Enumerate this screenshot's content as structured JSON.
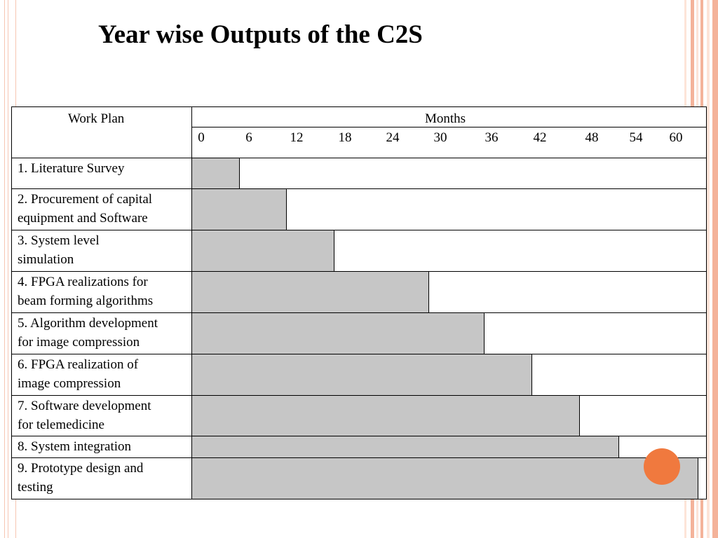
{
  "title": "Year wise Outputs of the C2S",
  "table": {
    "work_plan_header": "Work Plan",
    "months_header": "Months",
    "ticks": [
      "0",
      "6",
      "12",
      "18",
      "24",
      "30",
      "36",
      "42",
      "48",
      "54",
      "60"
    ],
    "tasks": [
      {
        "lines": [
          "1. Literature Survey"
        ],
        "end_month": 6
      },
      {
        "lines": [
          "2. Procurement of capital",
          "equipment and Software"
        ],
        "end_month": 12
      },
      {
        "lines": [
          "3. System level",
          "simulation"
        ],
        "end_month": 18
      },
      {
        "lines": [
          "4. FPGA realizations for",
          "beam forming algorithms"
        ],
        "end_month": 30
      },
      {
        "lines": [
          "5. Algorithm development",
          "for image compression"
        ],
        "end_month": 37
      },
      {
        "lines": [
          "6. FPGA realization of",
          "image compression"
        ],
        "end_month": 43
      },
      {
        "lines": [
          "7. Software development",
          "for telemedicine"
        ],
        "end_month": 49
      },
      {
        "lines": [
          "8. System integration"
        ],
        "end_month": 54
      },
      {
        "lines": [
          "9. Prototype design and",
          "testing"
        ],
        "end_month": 64
      }
    ]
  },
  "colors": {
    "bar_fill": "#c6c6c6",
    "accent_stripe": "#f4b39a",
    "accent_dot": "#f0793e"
  }
}
